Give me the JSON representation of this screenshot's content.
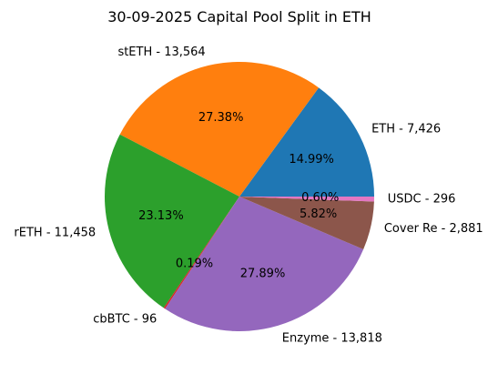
{
  "chart_data": {
    "type": "pie",
    "title": "30-09-2025 Capital Pool Split in ETH",
    "slices": [
      {
        "label": "ETH - 7,426",
        "value": 7426,
        "percent_label": "14.99%",
        "color": "#1f77b4"
      },
      {
        "label": "stETH - 13,564",
        "value": 13564,
        "percent_label": "27.38%",
        "color": "#ff7f0e"
      },
      {
        "label": "rETH - 11,458",
        "value": 11458,
        "percent_label": "23.13%",
        "color": "#2ca02c"
      },
      {
        "label": "cbBTC - 96",
        "value": 96,
        "percent_label": "0.19%",
        "color": "#d62728"
      },
      {
        "label": "Enzyme - 13,818",
        "value": 13818,
        "percent_label": "27.89%",
        "color": "#9467bd"
      },
      {
        "label": "Cover Re - 2,881",
        "value": 2881,
        "percent_label": "5.82%",
        "color": "#8c564b"
      },
      {
        "label": "USDC - 296",
        "value": 296,
        "percent_label": "0.60%",
        "color": "#e377c2"
      }
    ],
    "start_angle_deg": 0,
    "direction": "counterclockwise",
    "legend": "none"
  }
}
